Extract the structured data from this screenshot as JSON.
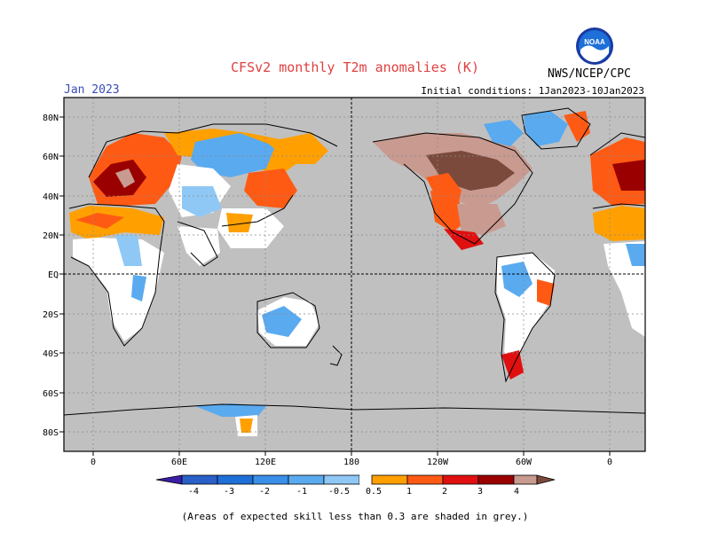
{
  "header": {
    "title": "CFSv2 monthly T2m anomalies (K)",
    "month": "Jan 2023",
    "initial_conditions": "Initial conditions: 1Jan2023-10Jan2023",
    "agency": "NWS/NCEP/CPC",
    "logo_text": "NOAA"
  },
  "map": {
    "projection": "cylindrical equidistant, centered on 180",
    "lat_labels": [
      "80N",
      "60N",
      "40N",
      "20N",
      "EQ",
      "20S",
      "40S",
      "60S",
      "80S"
    ],
    "lon_labels": [
      "0",
      "60E",
      "120E",
      "180",
      "120W",
      "60W",
      "0"
    ],
    "grid": "dotted",
    "grey_colour": "#c0c0c0"
  },
  "colorbar": {
    "tick_labels": [
      "-4",
      "-3",
      "-2",
      "-1",
      "-0.5",
      "0.5",
      "1",
      "2",
      "3",
      "4"
    ],
    "colors": [
      "#3b1ea8",
      "#2a5fc8",
      "#3a8fe8",
      "#5aaaf0",
      "#90c8f5",
      "#ffffff",
      "#ffa000",
      "#ff5a14",
      "#e01010",
      "#9a0000",
      "#c89a90",
      "#7b4a3c"
    ]
  },
  "footnote": "(Areas of expected skill less than 0.3 are shaded in grey.)"
}
